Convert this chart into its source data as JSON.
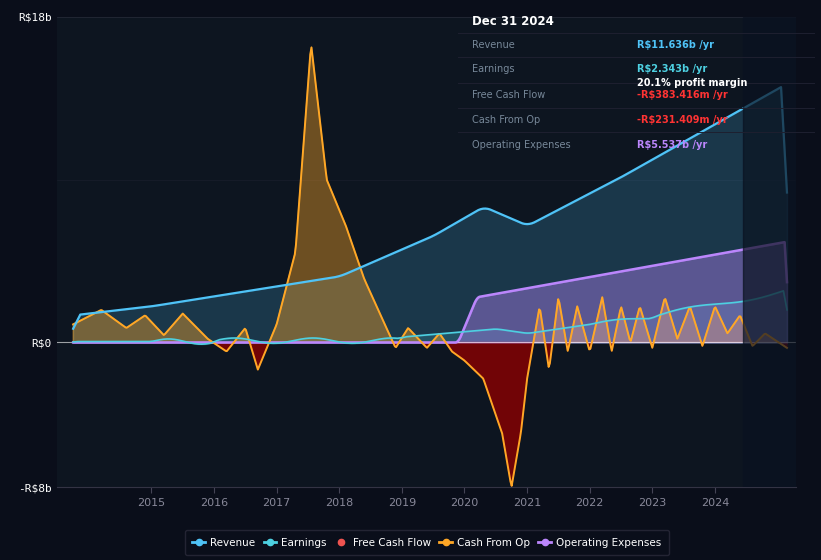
{
  "bg_color": "#0a0e1a",
  "plot_bg_color": "#0d1520",
  "ylim": [
    -8,
    18
  ],
  "xlim": [
    2013.5,
    2025.3
  ],
  "xticks": [
    2015,
    2016,
    2017,
    2018,
    2019,
    2020,
    2021,
    2022,
    2023,
    2024
  ],
  "revenue_color": "#4fc3f7",
  "earnings_color": "#4dd0e1",
  "fcf_color": "#ef5350",
  "cashfromop_color": "#ffa726",
  "opex_color": "#bb86fc",
  "info_box": {
    "title": "Dec 31 2024",
    "revenue_label": "Revenue",
    "revenue_value": "R$11.636b /yr",
    "earnings_label": "Earnings",
    "earnings_value": "R$2.343b /yr",
    "margin_value": "20.1% profit margin",
    "fcf_label": "Free Cash Flow",
    "fcf_value": "-R$383.416m /yr",
    "cashop_label": "Cash From Op",
    "cashop_value": "-R$231.409m /yr",
    "opex_label": "Operating Expenses",
    "opex_value": "R$5.537b /yr"
  }
}
